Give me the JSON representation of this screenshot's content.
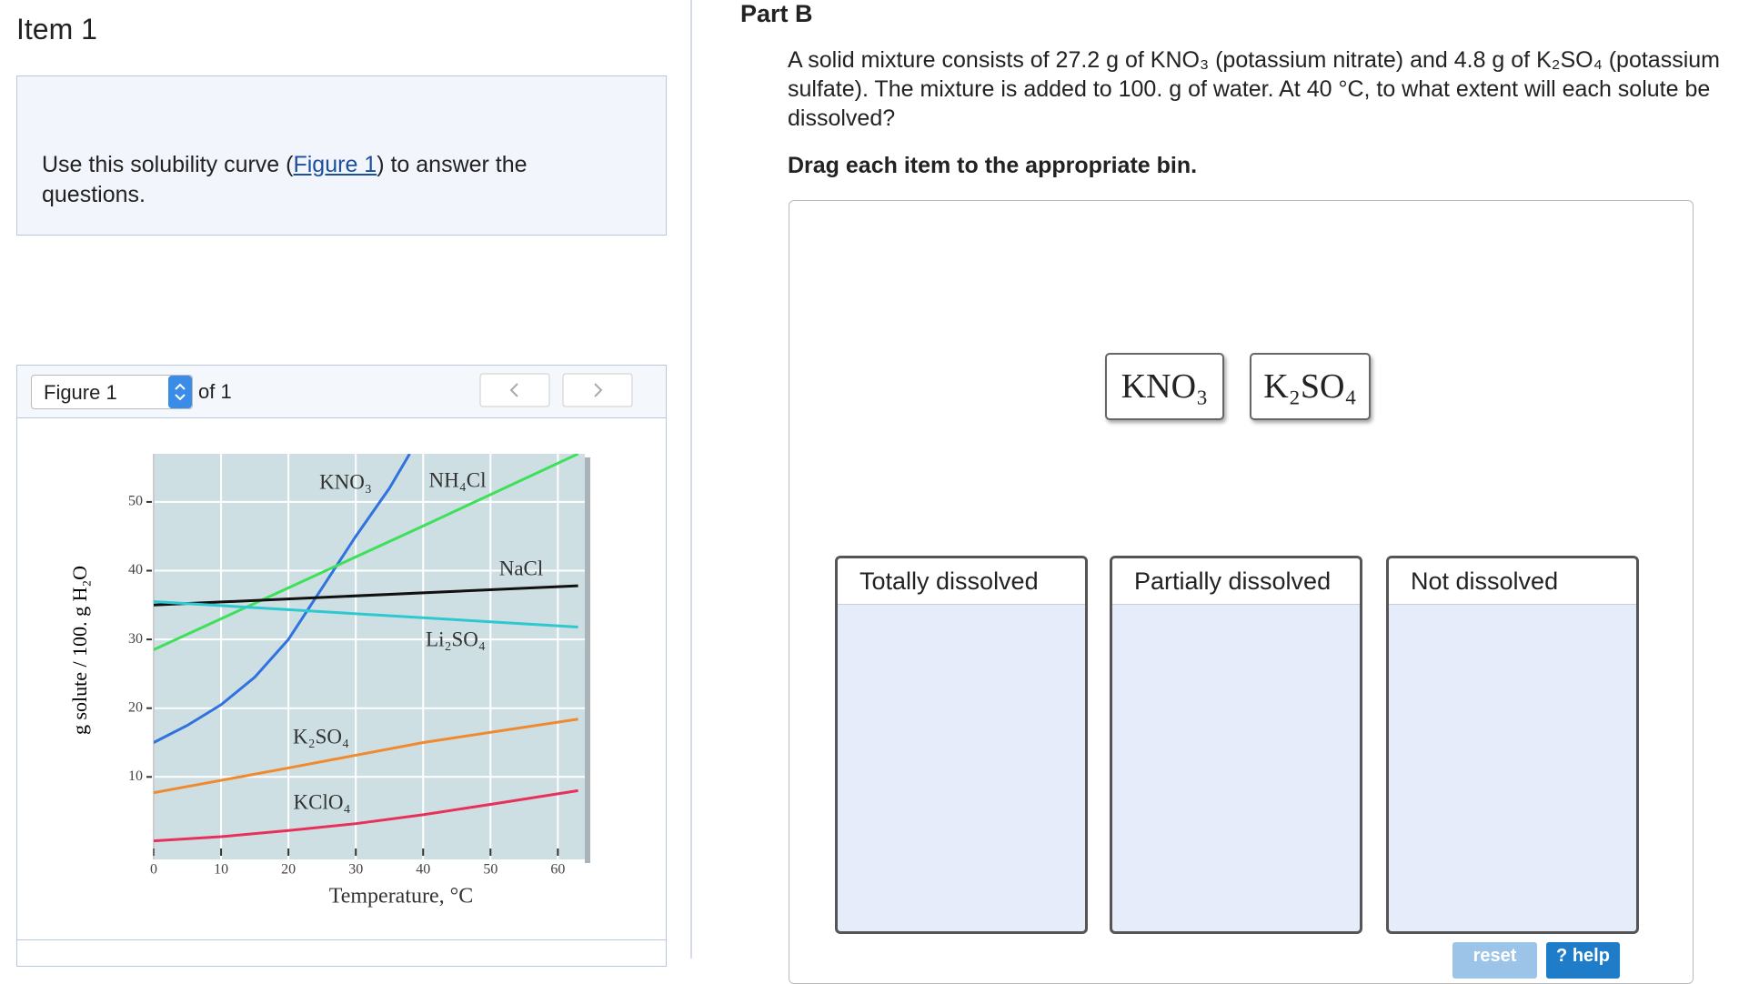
{
  "item_title": "Item 1",
  "intro": {
    "before": "Use this solubility curve (",
    "link": "Figure 1",
    "after": ") to answer the questions."
  },
  "figure_nav": {
    "select": "Figure 1",
    "of": "of 1"
  },
  "chart_data": {
    "type": "line",
    "x_label": "Temperature, °C",
    "y_label": "g solute / 100. g H₂O",
    "xlim": [
      0,
      64
    ],
    "ylim": [
      -2,
      57
    ],
    "xticks": [
      0,
      10,
      20,
      30,
      40,
      50,
      60
    ],
    "yticks": [
      10,
      20,
      30,
      40,
      50
    ],
    "grid": true,
    "series": [
      {
        "name": "KNO₃",
        "color": "#2f72e0",
        "x": [
          0,
          5,
          10,
          15,
          20,
          25,
          30,
          35,
          38
        ],
        "values": [
          15,
          17.5,
          20.5,
          24.5,
          30,
          37.5,
          45,
          52,
          57
        ]
      },
      {
        "name": "NH₄Cl",
        "color": "#3ee05a",
        "x": [
          0,
          20,
          40,
          63
        ],
        "values": [
          28.5,
          37.5,
          46.5,
          57
        ]
      },
      {
        "name": "NaCl",
        "color": "#111111",
        "x": [
          0,
          63
        ],
        "values": [
          35,
          37.8
        ]
      },
      {
        "name": "Li₂SO₄",
        "color": "#2ec8d0",
        "x": [
          0,
          63
        ],
        "values": [
          35.5,
          31.8
        ]
      },
      {
        "name": "K₂SO₄",
        "color": "#f08a30",
        "x": [
          0,
          20,
          40,
          63
        ],
        "values": [
          7.7,
          11.3,
          15,
          18.4
        ]
      },
      {
        "name": "KClO₄",
        "color": "#e8305a",
        "x": [
          0,
          10,
          20,
          30,
          40,
          50,
          63
        ],
        "values": [
          0.7,
          1.3,
          2.2,
          3.2,
          4.5,
          6,
          8
        ]
      }
    ]
  },
  "part_b": {
    "title": "Part B",
    "question_lines": [
      "A solid mixture consists of 27.2 g of KNO₃ (potassium nitrate) and 4.8 g of K₂SO₄ (potassium",
      "sulfate).  The mixture is added to 100. g of water. At 40 °C, to what extent will each solute be",
      "dissolved?"
    ],
    "instruction": "Drag each item to the appropriate bin.",
    "items": [
      "KNO₃",
      "K₂SO₄"
    ],
    "bins": [
      "Totally dissolved",
      "Partially dissolved",
      "Not dissolved"
    ],
    "buttons": [
      "reset",
      "? help"
    ]
  }
}
